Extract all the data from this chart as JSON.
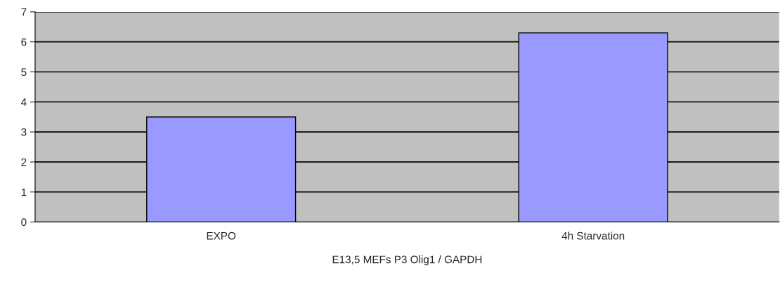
{
  "chart_data": {
    "type": "bar",
    "xlabel": "E13,5 MEFs P3 Olig1 / GAPDH",
    "categories": [
      "EXPO",
      "4h Starvation"
    ],
    "values": [
      3.5,
      6.3
    ],
    "color": "#9999ff",
    "ylim": [
      0,
      7
    ],
    "yticks": [
      0,
      1,
      2,
      3,
      4,
      5,
      6,
      7
    ],
    "grid": "y"
  }
}
